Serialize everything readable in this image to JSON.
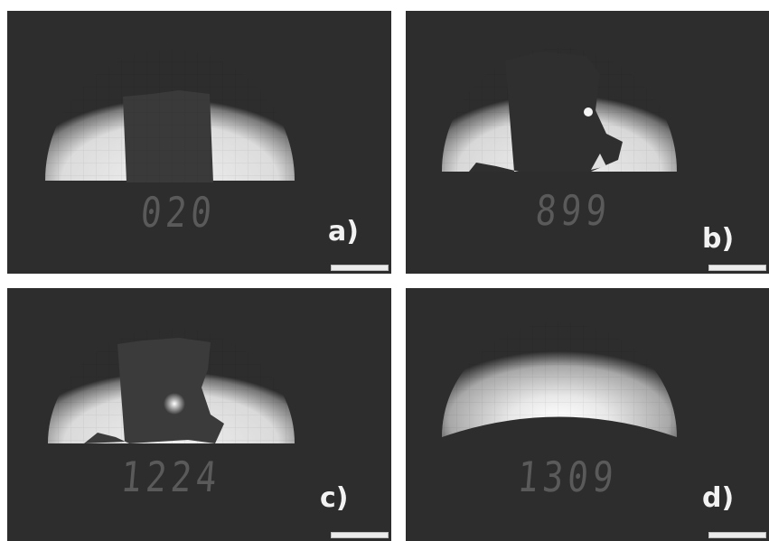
{
  "panels": [
    {
      "id": "a",
      "readout": "020",
      "label": "a)"
    },
    {
      "id": "b",
      "readout": "899",
      "label": "b)"
    },
    {
      "id": "c",
      "readout": "1224",
      "label": "c)"
    },
    {
      "id": "d",
      "readout": "1309",
      "label": "d)"
    }
  ],
  "colors": {
    "background": "#2d2d2d",
    "glow": "#e8e8e8",
    "readout": "#5a5a5a",
    "label": "#f2f2f2"
  }
}
